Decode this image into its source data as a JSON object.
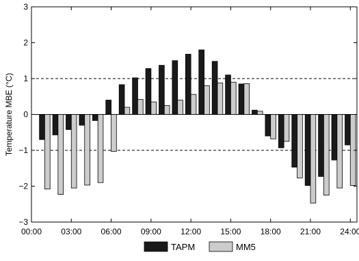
{
  "chart_data": {
    "type": "bar",
    "title": "",
    "xlabel": "",
    "ylabel": "Temperature MBE (°C)",
    "ylim": [
      -3,
      3
    ],
    "xlim": [
      0,
      24.5
    ],
    "yticks": [
      -3,
      -2,
      -1,
      0,
      1,
      2,
      3
    ],
    "ytick_labels": [
      "−3",
      "−2",
      "−1",
      "0",
      "1",
      "2",
      "3"
    ],
    "xticks": [
      0,
      3,
      6,
      9,
      12,
      15,
      18,
      21,
      24
    ],
    "xtick_labels": [
      "00:00",
      "03:00",
      "06:00",
      "09:00",
      "12:00",
      "15:00",
      "18:00",
      "21:00",
      "24:00"
    ],
    "reference_lines": [
      1,
      -1
    ],
    "grid": false,
    "legend_position": "bottom-center",
    "x": [
      1,
      2,
      3,
      4,
      5,
      6,
      7,
      8,
      9,
      10,
      11,
      12,
      13,
      14,
      15,
      16,
      17,
      18,
      19,
      20,
      21,
      22,
      23,
      24
    ],
    "series": [
      {
        "name": "TAPM",
        "color": "#1a1a1a",
        "values": [
          -0.7,
          -0.57,
          -0.42,
          -0.3,
          -0.17,
          0.4,
          0.83,
          1.02,
          1.28,
          1.37,
          1.5,
          1.68,
          1.8,
          1.48,
          1.1,
          0.85,
          0.12,
          -0.6,
          -0.93,
          -1.47,
          -1.98,
          -1.73,
          -1.27,
          -0.85
        ]
      },
      {
        "name": "MM5",
        "color": "#cccccc",
        "values": [
          -2.08,
          -2.23,
          -2.05,
          -1.97,
          -1.9,
          -1.03,
          0.2,
          0.42,
          0.35,
          0.25,
          0.4,
          0.56,
          0.8,
          0.88,
          0.9,
          0.86,
          0.09,
          -0.68,
          -0.75,
          -1.77,
          -2.47,
          -2.25,
          -2.05,
          -1.98
        ]
      }
    ]
  }
}
